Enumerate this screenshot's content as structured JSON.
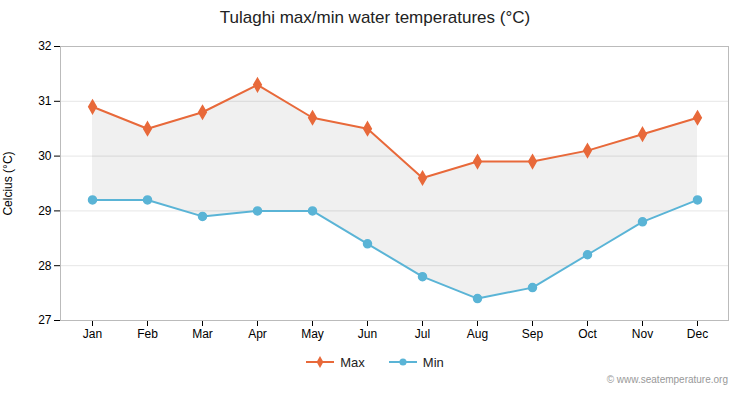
{
  "chart_data": {
    "type": "line",
    "title": "Tulaghi max/min water temperatures (°C)",
    "y_label": "Celcius (°C)",
    "categories": [
      "Jan",
      "Feb",
      "Mar",
      "Apr",
      "May",
      "Jun",
      "Jul",
      "Aug",
      "Sep",
      "Oct",
      "Nov",
      "Dec"
    ],
    "series": [
      {
        "name": "Max",
        "color": "#e8693a",
        "marker": "diamond",
        "values": [
          30.9,
          30.5,
          30.8,
          31.3,
          30.7,
          30.5,
          29.6,
          29.9,
          29.9,
          30.1,
          30.4,
          30.7
        ]
      },
      {
        "name": "Min",
        "color": "#5ab4d6",
        "marker": "circle",
        "values": [
          29.2,
          29.2,
          28.9,
          29.0,
          29.0,
          28.4,
          27.8,
          27.4,
          27.6,
          28.2,
          28.8,
          29.2
        ]
      }
    ],
    "ylim": [
      27,
      32
    ],
    "yticks": [
      27,
      28,
      29,
      30,
      31,
      32
    ],
    "grid": true,
    "legend": "bottom",
    "annotations": [
      "© www.seatemperature.org"
    ]
  }
}
